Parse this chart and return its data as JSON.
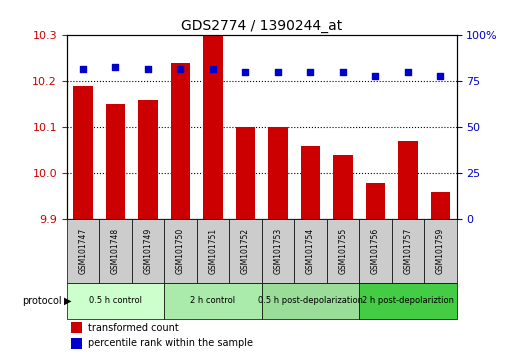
{
  "title": "GDS2774 / 1390244_at",
  "samples": [
    "GSM101747",
    "GSM101748",
    "GSM101749",
    "GSM101750",
    "GSM101751",
    "GSM101752",
    "GSM101753",
    "GSM101754",
    "GSM101755",
    "GSM101756",
    "GSM101757",
    "GSM101759"
  ],
  "bar_values": [
    10.19,
    10.15,
    10.16,
    10.24,
    10.3,
    10.1,
    10.101,
    10.06,
    10.04,
    9.98,
    10.07,
    9.96
  ],
  "percentile_values": [
    82,
    83,
    82,
    82,
    82,
    80,
    80,
    80,
    80,
    78,
    80,
    78
  ],
  "ylim_left": [
    9.9,
    10.3
  ],
  "ylim_right": [
    0,
    100
  ],
  "yticks_left": [
    9.9,
    10.0,
    10.1,
    10.2,
    10.3
  ],
  "yticks_right": [
    0,
    25,
    50,
    75,
    100
  ],
  "bar_color": "#cc0000",
  "dot_color": "#0000cc",
  "bg_color": "#ffffff",
  "protocol_groups": [
    {
      "label": "0.5 h control",
      "start": 0,
      "end": 3,
      "color": "#ccffcc"
    },
    {
      "label": "2 h control",
      "start": 3,
      "end": 6,
      "color": "#aaeaaa"
    },
    {
      "label": "0.5 h post-depolarization",
      "start": 6,
      "end": 9,
      "color": "#99dd99"
    },
    {
      "label": "2 h post-depolariztion",
      "start": 9,
      "end": 12,
      "color": "#44cc44"
    }
  ],
  "legend_bar_label": "transformed count",
  "legend_dot_label": "percentile rank within the sample",
  "protocol_label": "protocol",
  "xlabel_color": "#cc0000",
  "ylabel_right_color": "#0000cc",
  "sample_box_color": "#cccccc",
  "grid_yticks": [
    10.0,
    10.1,
    10.2
  ]
}
